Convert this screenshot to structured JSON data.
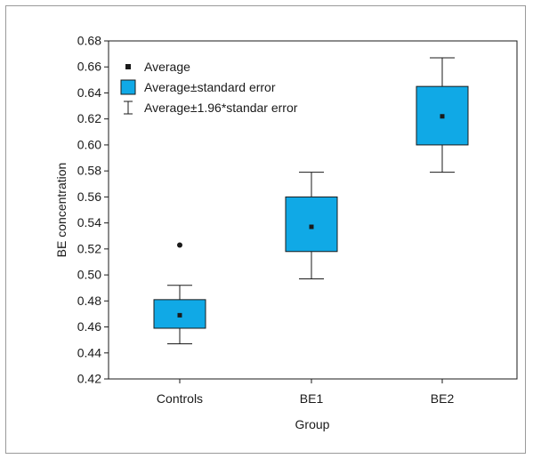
{
  "chart_data": {
    "type": "box",
    "title": "",
    "xlabel": "Group",
    "ylabel": "BE concentration",
    "ylim": [
      0.42,
      0.68
    ],
    "yticks": [
      0.42,
      0.44,
      0.46,
      0.48,
      0.5,
      0.52,
      0.54,
      0.56,
      0.58,
      0.6,
      0.62,
      0.64,
      0.66,
      0.68
    ],
    "categories": [
      "Controls",
      "BE1",
      "BE2"
    ],
    "groups": [
      {
        "name": "Controls",
        "average": 0.469,
        "se_low": 0.459,
        "se_high": 0.481,
        "ci_low": 0.447,
        "ci_high": 0.492,
        "outliers": [
          0.523
        ]
      },
      {
        "name": "BE1",
        "average": 0.537,
        "se_low": 0.518,
        "se_high": 0.56,
        "ci_low": 0.497,
        "ci_high": 0.579,
        "outliers": []
      },
      {
        "name": "BE2",
        "average": 0.622,
        "se_low": 0.6,
        "se_high": 0.645,
        "ci_low": 0.579,
        "ci_high": 0.667,
        "outliers": []
      }
    ],
    "legend": {
      "placement": "top-left",
      "entries": [
        {
          "symbol": "square-marker",
          "label": "Average"
        },
        {
          "symbol": "filled-box",
          "label": "Average±standard error"
        },
        {
          "symbol": "whisker",
          "label": "Average±1.96*standar error"
        }
      ]
    },
    "colors": {
      "box_fill": "#10a9e6",
      "line": "#1a1a1a",
      "frame": "#9a9a9a"
    },
    "grid": false
  }
}
